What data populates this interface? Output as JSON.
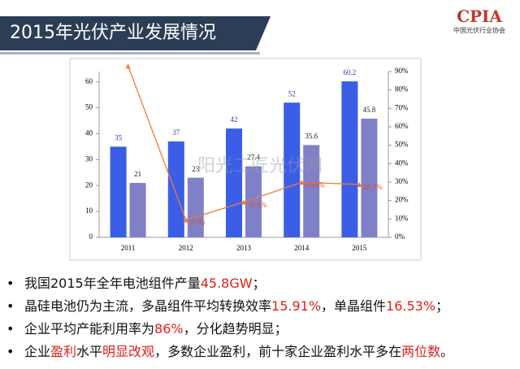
{
  "header": {
    "title": "2015年光伏产业发展情况",
    "logo": "CPIA",
    "logo_sub": "中国光伏行业协会"
  },
  "chart_data": {
    "type": "bar",
    "categories": [
      "2011",
      "2012",
      "2013",
      "2014",
      "2015"
    ],
    "series": [
      {
        "color": "#3b5ee6",
        "values": [
          35,
          37,
          42,
          52,
          60.2
        ],
        "value_labels": [
          "35",
          "37",
          "42",
          "52",
          "60.2"
        ]
      },
      {
        "color": "#8080c8",
        "values": [
          21,
          23,
          27.4,
          35.6,
          45.8
        ],
        "value_labels": [
          "21",
          "23",
          "27.4",
          "35.6",
          "45.8"
        ]
      },
      {
        "type": "line",
        "axis": "y2",
        "color": "#f07a3a",
        "values": [
          93,
          9.5,
          19.1,
          29.9,
          28.7
        ],
        "value_labels": [
          null,
          "9.5%",
          "19.1%",
          "29.9%",
          "28.7%"
        ]
      }
    ],
    "ylim": [
      0,
      64
    ],
    "yticks": [
      0,
      10,
      20,
      30,
      40,
      50,
      60
    ],
    "y2lim": [
      0,
      90
    ],
    "y2ticks": [
      {
        "value": 0,
        "label": "0%"
      },
      {
        "value": 10,
        "label": "10%"
      },
      {
        "value": 20,
        "label": "20%"
      },
      {
        "value": 30,
        "label": "30%"
      },
      {
        "value": 40,
        "label": "40%"
      },
      {
        "value": 50,
        "label": "50%"
      },
      {
        "value": 60,
        "label": "60%"
      },
      {
        "value": 70,
        "label": "70%"
      },
      {
        "value": 80,
        "label": "80%"
      },
      {
        "value": 90,
        "label": "90%"
      }
    ],
    "watermark": "阳光工匠光伏网"
  },
  "bullets": [
    [
      {
        "text": "我国2015年全年电池组件产量",
        "red": false
      },
      {
        "text": "45.8GW",
        "red": true
      },
      {
        "text": "；",
        "red": false
      }
    ],
    [
      {
        "text": "晶硅电池仍为主流，多晶组件平均转换效率",
        "red": false
      },
      {
        "text": "15.91%",
        "red": true
      },
      {
        "text": "，单晶组件",
        "red": false
      },
      {
        "text": "16.53%",
        "red": true
      },
      {
        "text": "；",
        "red": false
      }
    ],
    [
      {
        "text": "企业平均产能利用率为",
        "red": false
      },
      {
        "text": "86%",
        "red": true
      },
      {
        "text": "，分化趋势明显；",
        "red": false
      }
    ],
    [
      {
        "text": "企业",
        "red": false
      },
      {
        "text": "盈利",
        "red": true
      },
      {
        "text": "水平",
        "red": false
      },
      {
        "text": "明显改观",
        "red": true
      },
      {
        "text": "，多数企业盈利，前十家企业盈利水平多在",
        "red": false
      },
      {
        "text": "两位数",
        "red": true
      },
      {
        "text": "。",
        "red": false
      }
    ]
  ]
}
